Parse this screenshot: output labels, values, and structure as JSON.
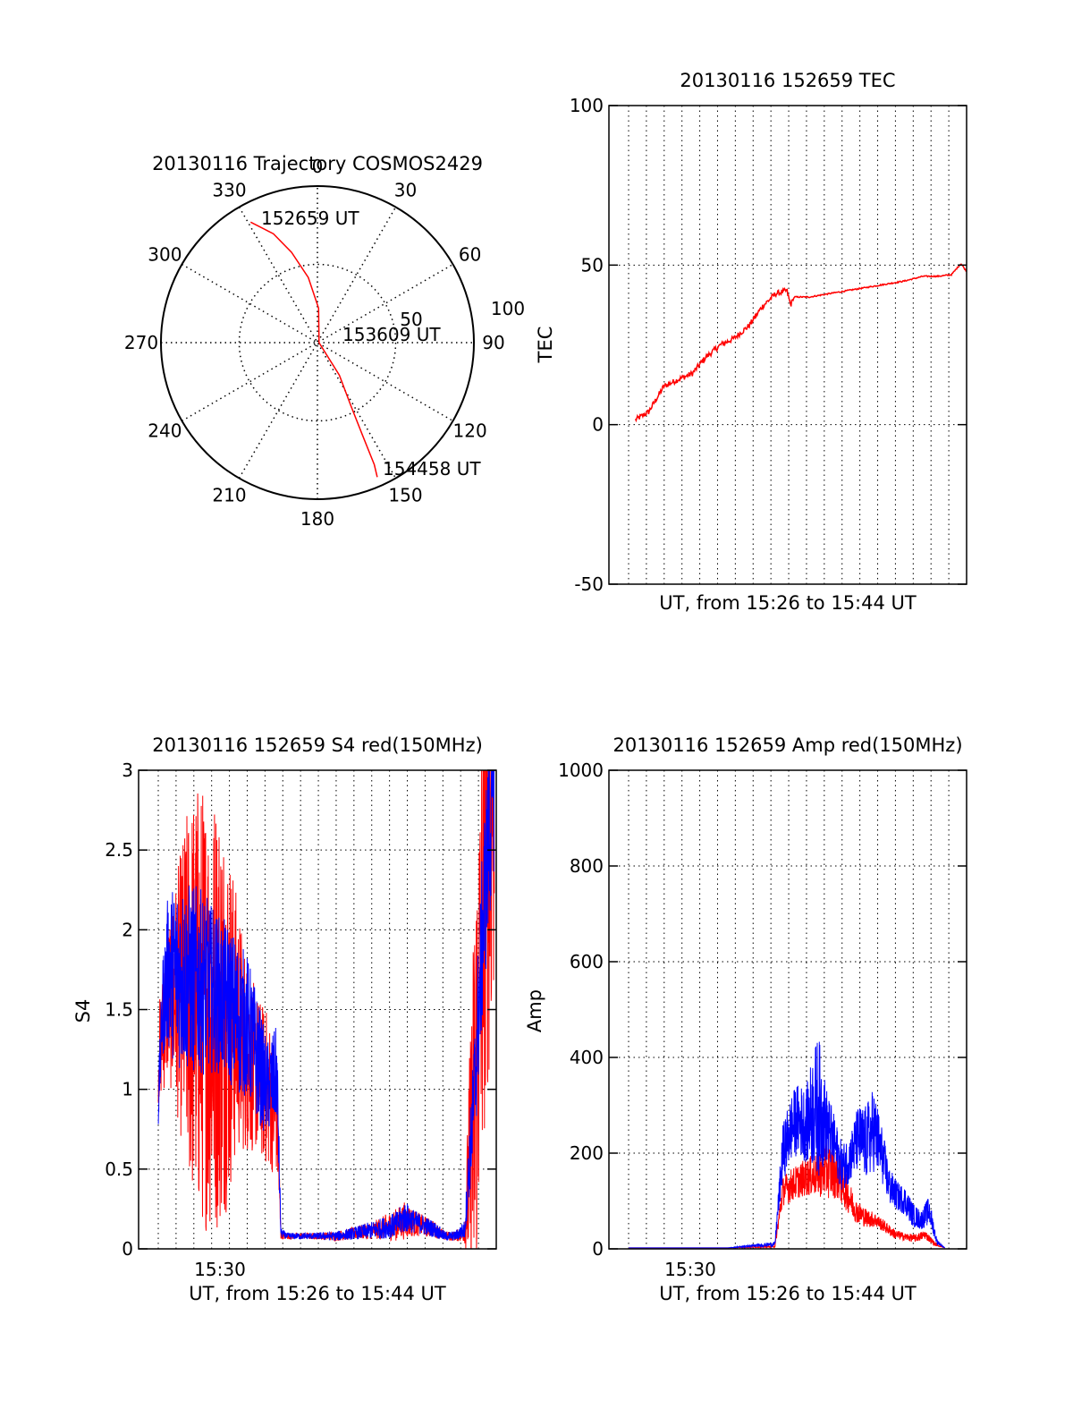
{
  "colors": {
    "red": "#ff0000",
    "blue": "#0000ff",
    "axis": "#000000",
    "grid": "#000000",
    "background": "#ffffff"
  },
  "chart_data": [
    {
      "id": "trajectory",
      "type": "polar",
      "title": "20130116 Trajectory COSMOS2429",
      "angle_labels": [
        "0",
        "30",
        "60",
        "90",
        "120",
        "150",
        "180",
        "210",
        "240",
        "270",
        "300",
        "330"
      ],
      "radial_labels": [
        "50",
        "100"
      ],
      "rlim": [
        0,
        100
      ],
      "grid": true,
      "series": [
        {
          "color": "#ff0000",
          "points": [
            {
              "az": 331,
              "r": 88
            },
            {
              "az": 338,
              "r": 75
            },
            {
              "az": 344,
              "r": 60
            },
            {
              "az": 352,
              "r": 42
            },
            {
              "az": 2,
              "r": 22
            },
            {
              "az": 90,
              "r": 1
            },
            {
              "az": 146,
              "r": 25
            },
            {
              "az": 152,
              "r": 45
            },
            {
              "az": 154,
              "r": 65
            },
            {
              "az": 155,
              "r": 86
            },
            {
              "az": 156,
              "r": 94
            }
          ]
        }
      ],
      "annotations": [
        "152659 UT",
        "153609 UT",
        "154458 UT"
      ]
    },
    {
      "id": "tec",
      "type": "line",
      "title": "20130116 152659 TEC",
      "ylabel": "TEC",
      "xlabel": "UT, from 15:26 to 15:44 UT",
      "ylim": [
        -50,
        100
      ],
      "yticks": [
        "-50",
        "0",
        "50",
        "100"
      ],
      "xlim_minutes": [
        15.4,
        34.3
      ],
      "grid": true,
      "series": [
        {
          "color": "#ff0000",
          "x": [
            16.8,
            17.5,
            18.3,
            19.0,
            19.8,
            20.5,
            21.3,
            22.0,
            22.8,
            23.5,
            24.2,
            24.8,
            25.0,
            25.2,
            26.0,
            27.0,
            28.0,
            29.0,
            30.0,
            31.0,
            32.0,
            32.8,
            33.5,
            34.0,
            34.3
          ],
          "y": [
            1.5,
            4.0,
            12.0,
            14.0,
            16.0,
            21.0,
            25.0,
            27.0,
            31.0,
            37.0,
            41.0,
            42.0,
            37.5,
            40.0,
            40.0,
            41.0,
            42.0,
            43.0,
            44.0,
            45.0,
            46.5,
            46.5,
            47.0,
            50.5,
            48.0
          ]
        }
      ]
    },
    {
      "id": "s4",
      "type": "line",
      "title": "20130116 152659 S4 red(150MHz)",
      "ylabel": "S4",
      "xlabel": "UT, from 15:26 to 15:44 UT",
      "xtick_label": "15:30",
      "ylim": [
        0,
        3
      ],
      "yticks": [
        "0",
        "0.5",
        "1",
        "1.5",
        "2",
        "2.5",
        "3"
      ],
      "xlim_minutes": [
        27.0,
        45.1
      ],
      "grid": true,
      "series": [
        {
          "color": "#ff0000",
          "noisy": true,
          "x": [
            28.0,
            28.5,
            29.0,
            29.5,
            30.0,
            30.5,
            31.0,
            31.5,
            32.0,
            32.5,
            33.0,
            33.5,
            34.0,
            34.2,
            34.5,
            35.0,
            36.0,
            37.0,
            38.0,
            39.0,
            40.0,
            40.5,
            41.0,
            42.0,
            42.5,
            43.0,
            43.5,
            44.0,
            44.5,
            45.0
          ],
          "y": [
            1.2,
            1.55,
            1.6,
            1.6,
            1.55,
            1.5,
            1.5,
            1.45,
            1.4,
            1.2,
            1.1,
            1.0,
            0.85,
            0.08,
            0.08,
            0.08,
            0.08,
            0.08,
            0.1,
            0.12,
            0.15,
            0.18,
            0.16,
            0.12,
            0.08,
            0.08,
            0.1,
            0.9,
            2.2,
            3.0
          ],
          "amp": [
            0.3,
            0.5,
            0.8,
            1.2,
            1.4,
            1.4,
            1.4,
            1.2,
            0.8,
            0.6,
            0.5,
            0.5,
            0.4,
            0.02,
            0.02,
            0.02,
            0.02,
            0.03,
            0.04,
            0.06,
            0.1,
            0.12,
            0.08,
            0.05,
            0.03,
            0.03,
            0.06,
            1.4,
            1.5,
            1.5
          ]
        },
        {
          "color": "#0000ff",
          "noisy": true,
          "x": [
            28.0,
            28.2,
            28.5,
            29.0,
            29.5,
            30.0,
            30.5,
            31.0,
            31.5,
            32.0,
            32.5,
            33.0,
            33.5,
            34.0,
            34.2,
            34.5,
            35.0,
            36.0,
            37.0,
            38.0,
            39.0,
            40.0,
            40.5,
            41.0,
            42.0,
            42.5,
            43.0,
            43.5,
            44.0,
            44.5,
            45.0
          ],
          "y": [
            0.9,
            1.5,
            1.75,
            1.72,
            1.7,
            1.68,
            1.65,
            1.6,
            1.55,
            1.45,
            1.4,
            1.2,
            1.0,
            1.1,
            0.1,
            0.08,
            0.08,
            0.08,
            0.08,
            0.1,
            0.12,
            0.15,
            0.2,
            0.17,
            0.12,
            0.08,
            0.08,
            0.12,
            1.0,
            2.2,
            3.0
          ],
          "amp": [
            0.15,
            0.3,
            0.5,
            0.6,
            0.6,
            0.6,
            0.55,
            0.5,
            0.5,
            0.5,
            0.45,
            0.4,
            0.3,
            0.3,
            0.03,
            0.02,
            0.02,
            0.02,
            0.03,
            0.04,
            0.06,
            0.08,
            0.1,
            0.07,
            0.05,
            0.03,
            0.03,
            0.06,
            0.4,
            0.6,
            0.6
          ]
        }
      ]
    },
    {
      "id": "amp",
      "type": "line",
      "title": "20130116 152659 Amp red(150MHz)",
      "ylabel": "Amp",
      "xlabel": "UT, from 15:26 to 15:44 UT",
      "xtick_label": "15:30",
      "ylim": [
        0,
        1000
      ],
      "yticks": [
        "0",
        "200",
        "400",
        "600",
        "800",
        "1000"
      ],
      "xlim_minutes": [
        27.0,
        45.1
      ],
      "grid": true,
      "series": [
        {
          "color": "#ff0000",
          "noisy": true,
          "x": [
            28.0,
            30.0,
            33.0,
            35.4,
            35.8,
            36.1,
            36.5,
            37.0,
            37.5,
            38.0,
            38.5,
            39.0,
            39.5,
            40.0,
            40.5,
            41.0,
            41.5,
            42.0,
            42.5,
            43.0,
            43.5,
            44.0
          ],
          "y": [
            2,
            2,
            2,
            5,
            120,
            130,
            140,
            150,
            155,
            165,
            160,
            120,
            80,
            65,
            60,
            45,
            30,
            25,
            22,
            30,
            10,
            2
          ],
          "amp": [
            0,
            0,
            0,
            2,
            30,
            35,
            35,
            40,
            45,
            60,
            55,
            40,
            25,
            20,
            15,
            12,
            10,
            8,
            8,
            10,
            4,
            0
          ]
        },
        {
          "color": "#0000ff",
          "noisy": true,
          "x": [
            28.0,
            30.0,
            33.0,
            35.4,
            35.8,
            36.2,
            36.5,
            37.0,
            37.3,
            37.6,
            38.0,
            38.4,
            38.8,
            39.2,
            39.6,
            40.0,
            40.4,
            40.8,
            41.2,
            41.6,
            42.0,
            42.4,
            42.8,
            43.2,
            43.6,
            44.0
          ],
          "y": [
            2,
            2,
            2,
            10,
            200,
            250,
            270,
            260,
            290,
            300,
            260,
            220,
            170,
            190,
            230,
            220,
            250,
            200,
            130,
            110,
            100,
            70,
            60,
            80,
            15,
            2
          ],
          "amp": [
            0,
            0,
            0,
            5,
            60,
            70,
            75,
            80,
            120,
            150,
            80,
            60,
            50,
            50,
            70,
            80,
            90,
            60,
            40,
            30,
            30,
            25,
            20,
            30,
            5,
            0
          ]
        }
      ]
    }
  ]
}
